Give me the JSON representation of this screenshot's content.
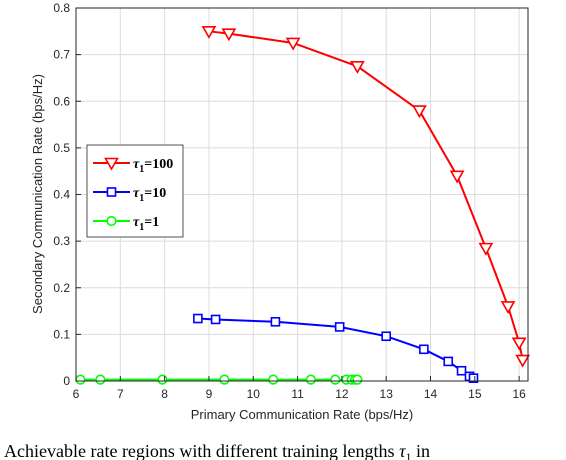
{
  "chart_data": {
    "type": "line",
    "xlabel": "Primary Communication Rate (bps/Hz)",
    "ylabel": "Secondary Communication Rate (bps/Hz)",
    "xlim": [
      6,
      16.2
    ],
    "ylim": [
      0,
      0.8
    ],
    "xticks": [
      6,
      7,
      8,
      9,
      10,
      11,
      12,
      13,
      14,
      15,
      16
    ],
    "yticks": [
      0,
      0.1,
      0.2,
      0.3,
      0.4,
      0.5,
      0.6,
      0.7,
      0.8
    ],
    "grid": true,
    "legend_position": "left",
    "series": [
      {
        "name": "τ1=100",
        "legend_main": "τ",
        "legend_sub": "1",
        "legend_rest": "=100",
        "color": "#ff0000",
        "marker": "triangle-down",
        "x": [
          9.0,
          9.45,
          10.9,
          12.35,
          13.75,
          14.6,
          15.25,
          15.75,
          16.0,
          16.08
        ],
        "y": [
          0.75,
          0.745,
          0.725,
          0.675,
          0.58,
          0.44,
          0.285,
          0.16,
          0.082,
          0.045
        ]
      },
      {
        "name": "τ1=10",
        "legend_main": "τ",
        "legend_sub": "1",
        "legend_rest": "=10",
        "color": "#0000ff",
        "marker": "square",
        "x": [
          8.75,
          9.15,
          10.5,
          11.95,
          13.0,
          13.85,
          14.4,
          14.7,
          14.88,
          14.97
        ],
        "y": [
          0.134,
          0.132,
          0.127,
          0.116,
          0.096,
          0.068,
          0.042,
          0.022,
          0.01,
          0.006
        ]
      },
      {
        "name": "τ1=1",
        "legend_main": "τ",
        "legend_sub": "1",
        "legend_rest": "=1",
        "color": "#00ff00",
        "marker": "circle",
        "x": [
          6.1,
          6.55,
          7.95,
          9.35,
          10.45,
          11.3,
          11.85,
          12.1,
          12.22,
          12.3,
          12.35
        ],
        "y": [
          0.003,
          0.003,
          0.003,
          0.003,
          0.003,
          0.003,
          0.003,
          0.003,
          0.003,
          0.003,
          0.003
        ]
      }
    ]
  },
  "caption": {
    "prefix": ".  Achievable rate regions with different training lengths ",
    "tau": "τ",
    "sub": "1",
    "suffix": " in"
  }
}
